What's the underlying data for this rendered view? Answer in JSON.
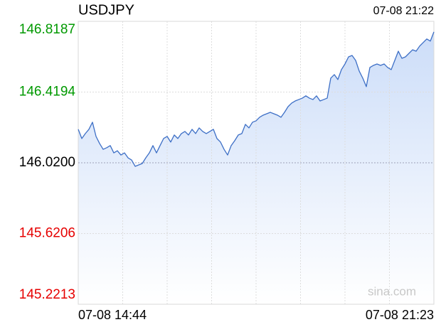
{
  "chart_data": {
    "type": "line",
    "title": "USDJPY",
    "time": "07-08 21:22",
    "watermark": "sina.com",
    "categories": [
      "07-08 14:44",
      null,
      null,
      null,
      null,
      null,
      null,
      null,
      null,
      null,
      null,
      null,
      null,
      null,
      null,
      null,
      null,
      null,
      null,
      null,
      null,
      null,
      null,
      null,
      null,
      null,
      null,
      null,
      null,
      null,
      null,
      null,
      null,
      null,
      null,
      null,
      null,
      null,
      null,
      null,
      null,
      null,
      null,
      null,
      null,
      null,
      null,
      null,
      null,
      null,
      null,
      null,
      null,
      null,
      null,
      null,
      null,
      null,
      null,
      null,
      null,
      null,
      null,
      null,
      null,
      null,
      null,
      null,
      null,
      null,
      null,
      null,
      null,
      null,
      null,
      null,
      null,
      null,
      null,
      null,
      null,
      null,
      null,
      null,
      null,
      null,
      null,
      null,
      null,
      null,
      null,
      null,
      null,
      null,
      null,
      null,
      null,
      null,
      null,
      null,
      "07-08 21:23"
    ],
    "values": [
      146.209,
      146.157,
      146.185,
      146.209,
      146.249,
      146.169,
      146.129,
      146.096,
      146.105,
      146.117,
      146.076,
      146.088,
      146.064,
      146.076,
      146.048,
      146.036,
      146.0,
      146.008,
      146.016,
      146.048,
      146.076,
      146.117,
      146.076,
      146.117,
      146.157,
      146.169,
      146.137,
      146.177,
      146.157,
      146.185,
      146.197,
      146.177,
      146.209,
      146.185,
      146.217,
      146.197,
      146.185,
      146.197,
      146.209,
      146.157,
      146.137,
      146.096,
      146.064,
      146.117,
      146.145,
      146.177,
      146.185,
      146.237,
      146.217,
      146.249,
      146.257,
      146.277,
      146.289,
      146.297,
      146.305,
      146.297,
      146.289,
      146.277,
      146.305,
      146.337,
      146.357,
      146.369,
      146.377,
      146.385,
      146.398,
      146.385,
      146.377,
      146.398,
      146.369,
      146.377,
      146.385,
      146.498,
      146.518,
      146.49,
      146.546,
      146.578,
      146.618,
      146.626,
      146.598,
      146.538,
      146.498,
      146.45,
      146.558,
      146.57,
      146.578,
      146.57,
      146.578,
      146.558,
      146.546,
      146.598,
      146.65,
      146.61,
      146.618,
      146.638,
      146.658,
      146.65,
      146.679,
      146.699,
      146.719,
      146.707,
      146.759
    ],
    "color": "#3d6fc6",
    "fill_color": "#d6e4fb",
    "up_color": "#009900",
    "down_color": "#e60000",
    "flat_color": "#000000",
    "ylim": [
      145.2213,
      146.8187
    ],
    "yticks": [
      145.2213,
      145.6206,
      {
        "value": 146.02,
        "label": "146.0200"
      },
      146.4194,
      146.8187
    ],
    "grid": true
  }
}
